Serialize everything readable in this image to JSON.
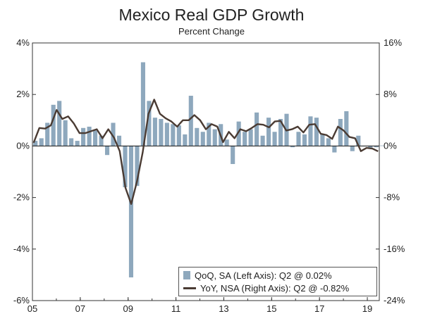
{
  "chart_data": {
    "type": "bar+line",
    "title": "Mexico Real GDP Growth",
    "subtitle": "Percent Change",
    "colors": {
      "bar": "#8ea8bd",
      "line": "#4a3b33",
      "axis": "#333333"
    },
    "x_ticks": [
      "05",
      "07",
      "09",
      "11",
      "13",
      "15",
      "17",
      "19"
    ],
    "y_left": {
      "ticks": [
        "4%",
        "2%",
        "0%",
        "-2%",
        "-4%",
        "-6%"
      ],
      "tick_values": [
        4,
        2,
        0,
        -2,
        -4,
        -6
      ],
      "ylim": [
        -6,
        4
      ]
    },
    "y_right": {
      "ticks": [
        "16%",
        "8%",
        "0%",
        "-8%",
        "-16%",
        "-24%"
      ],
      "tick_values": [
        16,
        8,
        0,
        -8,
        -16,
        -24
      ],
      "ylim": [
        -24,
        16
      ]
    },
    "x_start_year": 2005,
    "x_end_year": 2019.5,
    "series": [
      {
        "name": "QoQ, SA (Left Axis): Q2 @ 0.02%",
        "type": "bar",
        "axis": "left",
        "values": [
          0.2,
          0.3,
          0.9,
          1.6,
          1.75,
          1.0,
          0.3,
          0.2,
          0.7,
          0.75,
          0.6,
          0.4,
          -0.35,
          0.9,
          0.4,
          -1.6,
          -5.1,
          -1.55,
          3.25,
          1.75,
          1.1,
          1.05,
          0.9,
          0.85,
          0.8,
          0.45,
          1.95,
          0.7,
          0.55,
          0.9,
          0.65,
          0.85,
          0.25,
          -0.7,
          0.95,
          0.55,
          0.65,
          1.3,
          0.4,
          1.1,
          0.55,
          1.05,
          1.25,
          -0.05,
          0.55,
          0.45,
          1.15,
          1.1,
          0.45,
          0.3,
          -0.25,
          1.05,
          1.35,
          -0.2,
          0.4,
          0.0,
          -0.1,
          -0.05,
          0.02
        ]
      },
      {
        "name": "YoY, NSA (Right Axis): Q2 @ -0.82%",
        "type": "line",
        "axis": "right",
        "values": [
          0.5,
          2.8,
          2.7,
          3.2,
          5.6,
          4.2,
          4.6,
          3.5,
          2.0,
          2.0,
          2.3,
          2.6,
          1.2,
          2.6,
          1.3,
          -0.8,
          -6.5,
          -9.0,
          -5.5,
          -1.0,
          5.0,
          7.2,
          5.0,
          4.3,
          3.8,
          3.0,
          4.0,
          4.0,
          4.8,
          4.0,
          2.6,
          3.4,
          3.0,
          0.6,
          2.2,
          1.2,
          2.6,
          2.3,
          2.8,
          3.4,
          3.3,
          2.9,
          3.8,
          3.9,
          2.4,
          2.6,
          3.0,
          2.1,
          3.3,
          3.4,
          1.9,
          1.7,
          1.1,
          3.0,
          2.4,
          1.4,
          1.2,
          -0.8,
          -0.3,
          -0.4,
          -0.82
        ]
      }
    ],
    "legend": {
      "position": "bottom-right",
      "bar_label": "QoQ, SA (Left Axis): Q2 @ 0.02%",
      "line_label": "YoY, NSA (Right Axis): Q2 @ -0.82%"
    }
  }
}
